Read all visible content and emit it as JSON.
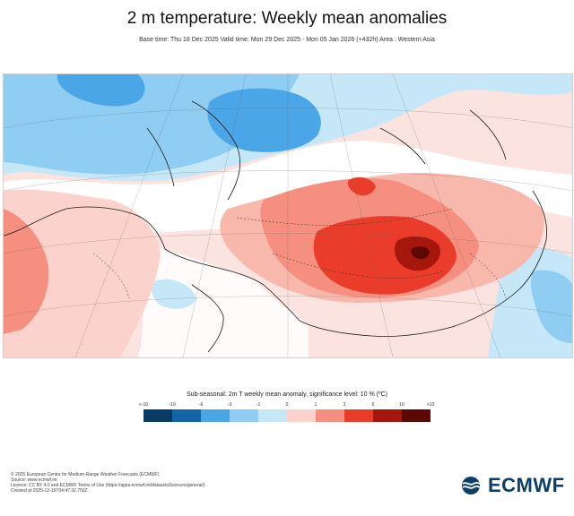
{
  "title": "2 m temperature: Weekly mean anomalies",
  "subtitle": "Base time: Thu 18 Dec 2025 Valid time: Mon 29 Dec 2025 - Mon 05 Jan 2026 (+432h) Area : Western Asia",
  "legend": {
    "title": "Sub-seasonal: 2m T weekly mean anomaly, significance level: 10 % (ºC)",
    "ticks": [
      "<-10",
      "-10",
      "-6",
      "-3",
      "-1",
      "0",
      "1",
      "3",
      "6",
      "10",
      ">10"
    ],
    "colors": [
      "#0a3b62",
      "#1266a8",
      "#4aa6e6",
      "#8fcdf2",
      "#c6e7f8",
      "#ffffff",
      "#fcd3cc",
      "#f58f7f",
      "#e93c2a",
      "#a5160d",
      "#5c0806"
    ]
  },
  "footer": [
    "© 2025 European Centre for Medium-Range Weather Forecasts (ECMWF)",
    "Source: www.ecmwf.int",
    "Licence: CC BY 4.0 and ECMWF Terms of Use (https://apps.ecmwf.int/datasets/licences/general/)",
    "Created at 2025-12-19T04:47:32.750Z"
  ],
  "logo": {
    "text": "ECMWF"
  }
}
